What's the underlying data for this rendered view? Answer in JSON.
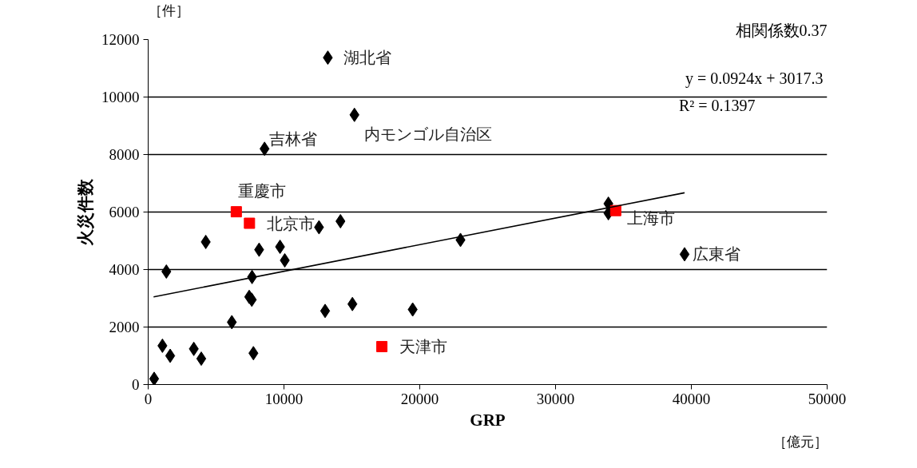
{
  "chart_data": {
    "type": "scatter",
    "xlabel": "GRP",
    "ylabel": "火災件数",
    "xlim": [
      0,
      50000
    ],
    "xticks": [
      0,
      10000,
      20000,
      30000,
      40000,
      50000
    ],
    "ylim": [
      0,
      12000
    ],
    "yticks": [
      0,
      2000,
      4000,
      6000,
      8000,
      10000,
      12000
    ],
    "grid": "y",
    "series": [
      {
        "marker": "diamond",
        "color": "#000000",
        "x": [
          440,
          1050,
          1620,
          1340,
          3360,
          3910,
          4240,
          6160,
          7440,
          7630,
          7650,
          7750,
          8170,
          8570,
          9710,
          10060,
          12580,
          13030,
          13230,
          14160,
          15040,
          15190,
          19480,
          23000,
          33890,
          33890,
          39500
        ],
        "values": [
          200,
          1350,
          1000,
          3930,
          1240,
          900,
          4960,
          2170,
          3050,
          2950,
          3740,
          1090,
          4690,
          8200,
          4790,
          4320,
          5470,
          2560,
          11370,
          5680,
          2800,
          9380,
          2610,
          5030,
          6290,
          5960,
          4530
        ]
      },
      {
        "marker": "square",
        "color": "#ff0000",
        "x": [
          6490,
          7460,
          17210,
          34430
        ],
        "values": [
          6010,
          5610,
          1320,
          6050
        ]
      },
      {
        "type": "line",
        "marker": "none",
        "color": "#000000",
        "x": [
          400,
          39500
        ],
        "values": [
          3050,
          6670
        ]
      }
    ],
    "annotations": [
      {
        "text": "湖北省",
        "x": 13230,
        "y": 11370
      },
      {
        "text": "内モンゴル自治区",
        "x": 15190,
        "y": 9380
      },
      {
        "text": "吉林省",
        "x": 8570,
        "y": 8200
      },
      {
        "text": "重慶市",
        "x": 6490,
        "y": 6010
      },
      {
        "text": "北京市",
        "x": 7460,
        "y": 5610
      },
      {
        "text": "上海市",
        "x": 34430,
        "y": 6050
      },
      {
        "text": "広東省",
        "x": 39500,
        "y": 4530
      },
      {
        "text": "天津市",
        "x": 17210,
        "y": 1320
      },
      "相関係数0.37",
      "y = 0.0924x + 3017.3",
      "R² = 0.1397",
      "［件］",
      "［億元］"
    ]
  }
}
